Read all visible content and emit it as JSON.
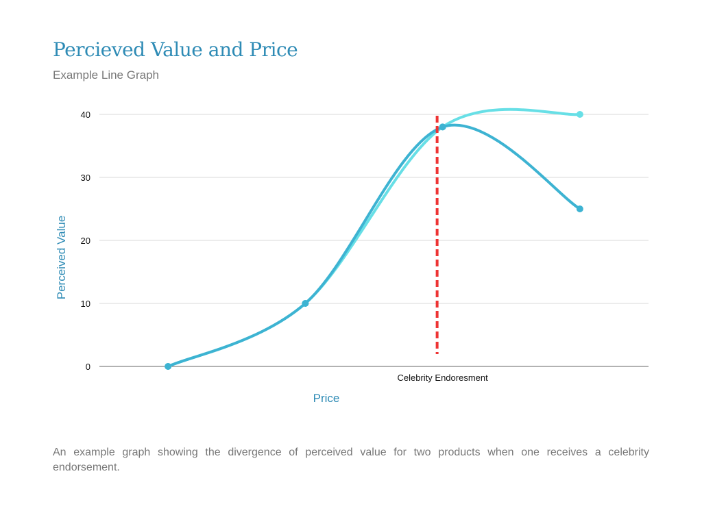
{
  "title": "Percieved Value and Price",
  "subtitle": "Example Line Graph",
  "caption": "An example graph showing the divergence of perceived value for two products when one receives a celebrity endorsement.",
  "chart_data": {
    "type": "line",
    "xlabel": "Price",
    "ylabel": "Perceived Value",
    "categories": [
      "",
      "",
      "Celebrity Endoresment",
      ""
    ],
    "ylim": [
      0,
      40
    ],
    "yticks": [
      0,
      10,
      20,
      30,
      40
    ],
    "grid": true,
    "smooth": true,
    "series": [
      {
        "values": [
          0,
          10,
          38,
          40
        ],
        "color": "#67dfe6"
      },
      {
        "values": [
          0,
          10,
          38,
          25
        ],
        "color": "#3db3d2"
      }
    ],
    "annotation": {
      "type": "vertical-dashed-line",
      "category_index": 2,
      "color": "#ee3333"
    }
  }
}
